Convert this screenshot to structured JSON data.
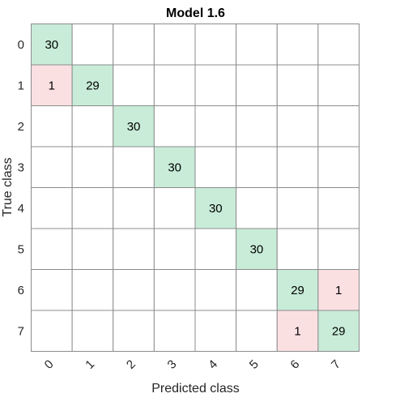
{
  "chart_data": {
    "type": "heatmap",
    "title": "Model 1.6",
    "xlabel": "Predicted class",
    "ylabel": "True class",
    "classes": [
      "0",
      "1",
      "2",
      "3",
      "4",
      "5",
      "6",
      "7"
    ],
    "matrix": [
      [
        30,
        0,
        0,
        0,
        0,
        0,
        0,
        0
      ],
      [
        1,
        29,
        0,
        0,
        0,
        0,
        0,
        0
      ],
      [
        0,
        0,
        30,
        0,
        0,
        0,
        0,
        0
      ],
      [
        0,
        0,
        0,
        30,
        0,
        0,
        0,
        0
      ],
      [
        0,
        0,
        0,
        0,
        30,
        0,
        0,
        0
      ],
      [
        0,
        0,
        0,
        0,
        0,
        30,
        0,
        0
      ],
      [
        0,
        0,
        0,
        0,
        0,
        0,
        29,
        1
      ],
      [
        0,
        0,
        0,
        0,
        0,
        0,
        1,
        29
      ]
    ],
    "hide_zero_cells": true,
    "colors": {
      "correct": "#c8ecd8",
      "incorrect": "#fbe0e2",
      "empty": "#ffffff",
      "grid": "#8c8c8c"
    }
  }
}
